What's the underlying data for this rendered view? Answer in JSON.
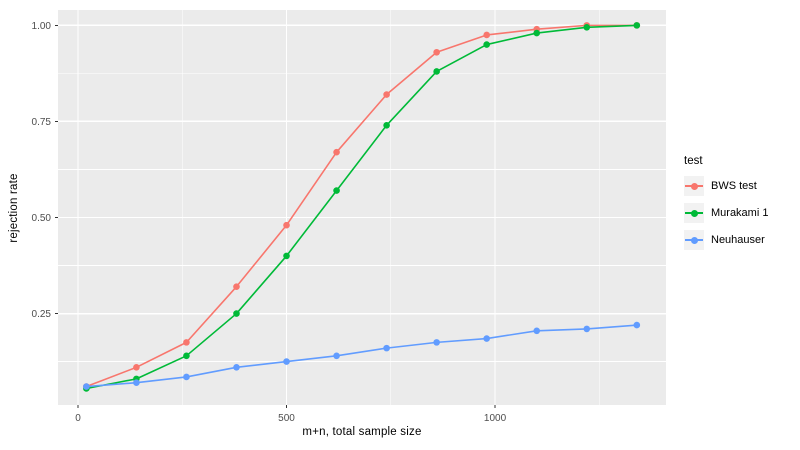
{
  "chart_data": {
    "type": "line",
    "title": "",
    "xlabel": "m+n, total sample size",
    "ylabel": "rejection rate",
    "x": [
      20,
      140,
      260,
      380,
      500,
      620,
      740,
      860,
      980,
      1100,
      1220,
      1340
    ],
    "series": [
      {
        "name": "BWS test",
        "color": "#F8766D",
        "values": [
          0.06,
          0.11,
          0.175,
          0.32,
          0.48,
          0.67,
          0.82,
          0.93,
          0.975,
          0.99,
          1.0,
          1.0
        ]
      },
      {
        "name": "Murakami 1",
        "color": "#00BA38",
        "values": [
          0.055,
          0.08,
          0.14,
          0.25,
          0.4,
          0.57,
          0.74,
          0.88,
          0.95,
          0.98,
          0.995,
          1.0
        ]
      },
      {
        "name": "Neuhauser",
        "color": "#619CFF",
        "values": [
          0.06,
          0.07,
          0.085,
          0.11,
          0.125,
          0.14,
          0.16,
          0.175,
          0.185,
          0.205,
          0.21,
          0.22
        ]
      }
    ],
    "x_ticks": {
      "values": [
        0,
        500,
        1000
      ],
      "labels": [
        "0",
        "500",
        "1000"
      ]
    },
    "y_ticks": {
      "values": [
        0.25,
        0.5,
        0.75,
        1.0
      ],
      "labels": [
        "0.25",
        "0.50",
        "0.75",
        "1.00"
      ]
    },
    "x_minor": [
      250,
      750,
      1250
    ],
    "y_minor": [
      0.125,
      0.375,
      0.625,
      0.875
    ],
    "xlim": [
      -48,
      1410
    ],
    "ylim": [
      0.012,
      1.04
    ],
    "grid": true,
    "legend": {
      "title": "test",
      "position": "right"
    },
    "colors": {
      "panel_bg": "#EBEBEB",
      "grid": "#FFFFFF",
      "tick_mark": "#333333",
      "tick_label": "#4D4D4D",
      "legend_key_bg": "#F2F2F2"
    }
  }
}
